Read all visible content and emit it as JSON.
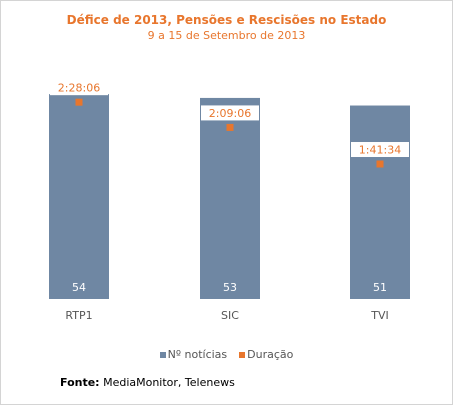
{
  "chart_data": {
    "type": "bar",
    "title": "Défice de 2013, Pensões e Rescisões no Estado",
    "subtitle": "9 a 15 de Setembro de 2013",
    "categories": [
      "RTP1",
      "SIC",
      "TVI"
    ],
    "series": [
      {
        "name": "Nº notícias",
        "kind": "bar",
        "color": "#6f87a3",
        "values": [
          54,
          53,
          51
        ],
        "labels": [
          "54",
          "53",
          "51"
        ]
      },
      {
        "name": "Duração",
        "kind": "point",
        "color": "#e8762d",
        "values": [
          148.1,
          129.1,
          101.57
        ],
        "labels": [
          "2:28:06",
          "2:09:06",
          "1:41:34"
        ]
      }
    ],
    "ylim_bars": [
      0,
      54.3
    ],
    "ylim_points": [
      0,
      155
    ],
    "grid": false,
    "legend_position": "bottom"
  },
  "source": {
    "label": "Fonte:",
    "text": "MediaMonitor, Telenews"
  }
}
